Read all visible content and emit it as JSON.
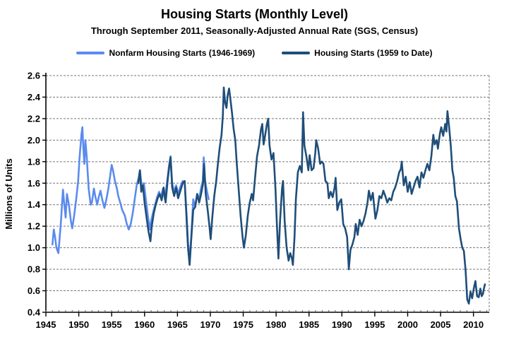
{
  "chart": {
    "title": "Housing Starts (Monthly Level)",
    "subtitle": "Through September 2011, Seasonally-Adjusted Annual Rate (SGS, Census)",
    "ylabel": "Millions of Units"
  },
  "chart_data": {
    "type": "line",
    "title": "Housing Starts (Monthly Level)",
    "subtitle": "Through September 2011, Seasonally-Adjusted Annual Rate (SGS, Census)",
    "xlabel": "",
    "ylabel": "Millions of Units",
    "xlim": [
      1945,
      2012.4
    ],
    "ylim": [
      0.4,
      2.6
    ],
    "x_ticks": [
      1945,
      1950,
      1955,
      1960,
      1965,
      1970,
      1975,
      1980,
      1985,
      1990,
      1995,
      2000,
      2005,
      2010
    ],
    "y_ticks": [
      0.4,
      0.6,
      0.8,
      1.0,
      1.2,
      1.4,
      1.6,
      1.8,
      2.0,
      2.2,
      2.4,
      2.6
    ],
    "grid": "horizontal-dashed-gray",
    "legend_position": "top",
    "units": "millions of units, seasonally-adjusted annual rate",
    "series": [
      {
        "name": "Nonfarm Housing Starts (1946-1969)",
        "color": "#5b8bef",
        "points": [
          [
            1946.0,
            1.03
          ],
          [
            1946.2,
            1.17
          ],
          [
            1946.4,
            1.1
          ],
          [
            1946.6,
            1.0
          ],
          [
            1946.9,
            0.95
          ],
          [
            1947.1,
            1.1
          ],
          [
            1947.3,
            1.25
          ],
          [
            1947.6,
            1.54
          ],
          [
            1947.8,
            1.4
          ],
          [
            1948.0,
            1.28
          ],
          [
            1948.2,
            1.5
          ],
          [
            1948.5,
            1.4
          ],
          [
            1948.8,
            1.25
          ],
          [
            1949.0,
            1.18
          ],
          [
            1949.3,
            1.3
          ],
          [
            1949.6,
            1.45
          ],
          [
            1949.9,
            1.62
          ],
          [
            1950.1,
            1.82
          ],
          [
            1950.4,
            2.05
          ],
          [
            1950.55,
            2.12
          ],
          [
            1950.7,
            1.92
          ],
          [
            1950.85,
            1.78
          ],
          [
            1951.0,
            2.0
          ],
          [
            1951.2,
            1.85
          ],
          [
            1951.5,
            1.55
          ],
          [
            1951.8,
            1.4
          ],
          [
            1952.0,
            1.42
          ],
          [
            1952.3,
            1.55
          ],
          [
            1952.5,
            1.48
          ],
          [
            1952.8,
            1.4
          ],
          [
            1953.0,
            1.46
          ],
          [
            1953.3,
            1.53
          ],
          [
            1953.6,
            1.44
          ],
          [
            1953.9,
            1.37
          ],
          [
            1954.2,
            1.45
          ],
          [
            1954.5,
            1.55
          ],
          [
            1954.8,
            1.68
          ],
          [
            1955.0,
            1.77
          ],
          [
            1955.2,
            1.72
          ],
          [
            1955.5,
            1.62
          ],
          [
            1955.8,
            1.55
          ],
          [
            1956.0,
            1.48
          ],
          [
            1956.3,
            1.42
          ],
          [
            1956.6,
            1.35
          ],
          [
            1957.0,
            1.3
          ],
          [
            1957.3,
            1.22
          ],
          [
            1957.6,
            1.17
          ],
          [
            1957.9,
            1.22
          ],
          [
            1958.2,
            1.32
          ],
          [
            1958.5,
            1.45
          ],
          [
            1958.8,
            1.58
          ],
          [
            1959.1,
            1.65
          ],
          [
            1959.3,
            1.72
          ],
          [
            1959.6,
            1.55
          ],
          [
            1959.9,
            1.6
          ],
          [
            1960.2,
            1.45
          ],
          [
            1960.5,
            1.3
          ],
          [
            1960.8,
            1.17
          ],
          [
            1961.0,
            1.25
          ],
          [
            1961.3,
            1.33
          ],
          [
            1961.6,
            1.4
          ],
          [
            1961.9,
            1.47
          ],
          [
            1962.2,
            1.52
          ],
          [
            1962.5,
            1.47
          ],
          [
            1962.8,
            1.55
          ],
          [
            1963.1,
            1.45
          ],
          [
            1963.4,
            1.6
          ],
          [
            1963.7,
            1.75
          ],
          [
            1963.95,
            1.85
          ],
          [
            1964.2,
            1.6
          ],
          [
            1964.5,
            1.52
          ],
          [
            1964.8,
            1.58
          ],
          [
            1965.1,
            1.5
          ],
          [
            1965.4,
            1.56
          ],
          [
            1965.8,
            1.62
          ],
          [
            1966.1,
            1.6
          ],
          [
            1966.4,
            1.3
          ],
          [
            1966.6,
            1.05
          ],
          [
            1966.85,
            0.88
          ],
          [
            1967.1,
            1.1
          ],
          [
            1967.4,
            1.45
          ],
          [
            1967.7,
            1.38
          ],
          [
            1968.0,
            1.5
          ],
          [
            1968.3,
            1.45
          ],
          [
            1968.6,
            1.56
          ],
          [
            1968.85,
            1.62
          ],
          [
            1969.0,
            1.84
          ],
          [
            1969.2,
            1.62
          ],
          [
            1969.5,
            1.52
          ],
          [
            1969.75,
            1.45
          ]
        ]
      },
      {
        "name": "Housing Starts (1959 to Date)",
        "color": "#1f4e79",
        "points": [
          [
            1959.05,
            1.6
          ],
          [
            1959.3,
            1.72
          ],
          [
            1959.5,
            1.52
          ],
          [
            1959.75,
            1.58
          ],
          [
            1960.0,
            1.42
          ],
          [
            1960.3,
            1.28
          ],
          [
            1960.6,
            1.15
          ],
          [
            1960.9,
            1.06
          ],
          [
            1961.1,
            1.2
          ],
          [
            1961.4,
            1.32
          ],
          [
            1961.7,
            1.4
          ],
          [
            1962.0,
            1.46
          ],
          [
            1962.3,
            1.5
          ],
          [
            1962.6,
            1.44
          ],
          [
            1962.9,
            1.56
          ],
          [
            1963.2,
            1.42
          ],
          [
            1963.5,
            1.62
          ],
          [
            1963.8,
            1.78
          ],
          [
            1963.95,
            1.84
          ],
          [
            1964.2,
            1.56
          ],
          [
            1964.5,
            1.48
          ],
          [
            1964.8,
            1.56
          ],
          [
            1965.1,
            1.46
          ],
          [
            1965.4,
            1.52
          ],
          [
            1965.8,
            1.6
          ],
          [
            1966.1,
            1.62
          ],
          [
            1966.4,
            1.25
          ],
          [
            1966.6,
            1.0
          ],
          [
            1966.85,
            0.84
          ],
          [
            1967.1,
            1.08
          ],
          [
            1967.4,
            1.35
          ],
          [
            1967.7,
            1.38
          ],
          [
            1968.0,
            1.5
          ],
          [
            1968.3,
            1.42
          ],
          [
            1968.6,
            1.5
          ],
          [
            1968.9,
            1.6
          ],
          [
            1969.05,
            1.78
          ],
          [
            1969.3,
            1.5
          ],
          [
            1969.6,
            1.35
          ],
          [
            1969.9,
            1.18
          ],
          [
            1970.05,
            1.08
          ],
          [
            1970.3,
            1.28
          ],
          [
            1970.6,
            1.48
          ],
          [
            1970.9,
            1.62
          ],
          [
            1971.1,
            1.75
          ],
          [
            1971.4,
            1.92
          ],
          [
            1971.7,
            2.05
          ],
          [
            1971.9,
            2.22
          ],
          [
            1972.05,
            2.49
          ],
          [
            1972.25,
            2.35
          ],
          [
            1972.45,
            2.3
          ],
          [
            1972.65,
            2.42
          ],
          [
            1972.85,
            2.48
          ],
          [
            1973.05,
            2.38
          ],
          [
            1973.3,
            2.25
          ],
          [
            1973.55,
            2.1
          ],
          [
            1973.8,
            2.0
          ],
          [
            1974.0,
            1.8
          ],
          [
            1974.3,
            1.55
          ],
          [
            1974.6,
            1.3
          ],
          [
            1974.9,
            1.1
          ],
          [
            1975.1,
            1.0
          ],
          [
            1975.4,
            1.12
          ],
          [
            1975.7,
            1.3
          ],
          [
            1976.0,
            1.42
          ],
          [
            1976.3,
            1.5
          ],
          [
            1976.5,
            1.44
          ],
          [
            1976.8,
            1.65
          ],
          [
            1977.1,
            1.85
          ],
          [
            1977.4,
            1.95
          ],
          [
            1977.7,
            2.1
          ],
          [
            1977.9,
            2.15
          ],
          [
            1978.1,
            1.96
          ],
          [
            1978.35,
            2.05
          ],
          [
            1978.6,
            2.15
          ],
          [
            1978.8,
            2.2
          ],
          [
            1979.0,
            1.95
          ],
          [
            1979.3,
            1.82
          ],
          [
            1979.6,
            1.88
          ],
          [
            1979.9,
            1.55
          ],
          [
            1980.1,
            1.25
          ],
          [
            1980.35,
            0.9
          ],
          [
            1980.6,
            1.25
          ],
          [
            1980.9,
            1.55
          ],
          [
            1981.05,
            1.62
          ],
          [
            1981.3,
            1.25
          ],
          [
            1981.6,
            1.0
          ],
          [
            1981.9,
            0.88
          ],
          [
            1982.15,
            0.95
          ],
          [
            1982.4,
            0.9
          ],
          [
            1982.55,
            0.84
          ],
          [
            1982.8,
            1.1
          ],
          [
            1983.0,
            1.45
          ],
          [
            1983.3,
            1.7
          ],
          [
            1983.6,
            1.76
          ],
          [
            1983.9,
            1.7
          ],
          [
            1984.1,
            2.26
          ],
          [
            1984.3,
            1.95
          ],
          [
            1984.6,
            1.85
          ],
          [
            1984.9,
            1.72
          ],
          [
            1985.1,
            1.86
          ],
          [
            1985.4,
            1.72
          ],
          [
            1985.7,
            1.74
          ],
          [
            1985.95,
            1.88
          ],
          [
            1986.1,
            2.0
          ],
          [
            1986.4,
            1.92
          ],
          [
            1986.7,
            1.78
          ],
          [
            1986.95,
            1.8
          ],
          [
            1987.2,
            1.78
          ],
          [
            1987.5,
            1.62
          ],
          [
            1987.8,
            1.6
          ],
          [
            1988.0,
            1.46
          ],
          [
            1988.3,
            1.52
          ],
          [
            1988.6,
            1.47
          ],
          [
            1988.9,
            1.56
          ],
          [
            1989.05,
            1.65
          ],
          [
            1989.3,
            1.35
          ],
          [
            1989.6,
            1.42
          ],
          [
            1989.9,
            1.45
          ],
          [
            1990.2,
            1.22
          ],
          [
            1990.5,
            1.18
          ],
          [
            1990.8,
            1.1
          ],
          [
            1991.05,
            0.8
          ],
          [
            1991.3,
            0.98
          ],
          [
            1991.6,
            1.03
          ],
          [
            1991.9,
            1.1
          ],
          [
            1992.1,
            1.22
          ],
          [
            1992.4,
            1.12
          ],
          [
            1992.7,
            1.26
          ],
          [
            1993.0,
            1.2
          ],
          [
            1993.3,
            1.25
          ],
          [
            1993.6,
            1.32
          ],
          [
            1993.9,
            1.42
          ],
          [
            1994.1,
            1.53
          ],
          [
            1994.4,
            1.44
          ],
          [
            1994.7,
            1.51
          ],
          [
            1995.1,
            1.27
          ],
          [
            1995.4,
            1.35
          ],
          [
            1995.7,
            1.48
          ],
          [
            1996.0,
            1.46
          ],
          [
            1996.3,
            1.53
          ],
          [
            1996.6,
            1.48
          ],
          [
            1996.9,
            1.42
          ],
          [
            1997.2,
            1.46
          ],
          [
            1997.5,
            1.44
          ],
          [
            1997.8,
            1.52
          ],
          [
            1998.1,
            1.56
          ],
          [
            1998.4,
            1.62
          ],
          [
            1998.7,
            1.7
          ],
          [
            1998.95,
            1.73
          ],
          [
            1999.1,
            1.8
          ],
          [
            1999.4,
            1.58
          ],
          [
            1999.7,
            1.66
          ],
          [
            2000.0,
            1.52
          ],
          [
            2000.3,
            1.61
          ],
          [
            2000.6,
            1.5
          ],
          [
            2000.9,
            1.56
          ],
          [
            2001.2,
            1.62
          ],
          [
            2001.5,
            1.66
          ],
          [
            2001.8,
            1.56
          ],
          [
            2002.1,
            1.7
          ],
          [
            2002.4,
            1.65
          ],
          [
            2002.7,
            1.72
          ],
          [
            2003.0,
            1.78
          ],
          [
            2003.3,
            1.72
          ],
          [
            2003.6,
            1.85
          ],
          [
            2003.9,
            2.05
          ],
          [
            2004.1,
            1.96
          ],
          [
            2004.4,
            2.0
          ],
          [
            2004.6,
            1.92
          ],
          [
            2004.9,
            2.06
          ],
          [
            2005.1,
            2.12
          ],
          [
            2005.4,
            2.04
          ],
          [
            2005.7,
            2.15
          ],
          [
            2005.9,
            2.08
          ],
          [
            2006.05,
            2.27
          ],
          [
            2006.3,
            2.12
          ],
          [
            2006.55,
            1.95
          ],
          [
            2006.8,
            1.72
          ],
          [
            2007.0,
            1.65
          ],
          [
            2007.25,
            1.48
          ],
          [
            2007.5,
            1.43
          ],
          [
            2007.8,
            1.18
          ],
          [
            2008.05,
            1.08
          ],
          [
            2008.3,
            1.0
          ],
          [
            2008.55,
            0.97
          ],
          [
            2008.8,
            0.79
          ],
          [
            2009.05,
            0.52
          ],
          [
            2009.3,
            0.48
          ],
          [
            2009.55,
            0.59
          ],
          [
            2009.8,
            0.53
          ],
          [
            2010.05,
            0.62
          ],
          [
            2010.3,
            0.69
          ],
          [
            2010.55,
            0.55
          ],
          [
            2010.8,
            0.54
          ],
          [
            2011.05,
            0.62
          ],
          [
            2011.25,
            0.55
          ],
          [
            2011.45,
            0.57
          ],
          [
            2011.6,
            0.62
          ],
          [
            2011.75,
            0.66
          ]
        ]
      }
    ]
  },
  "colors": {
    "grid": "#777777",
    "axis": "#000000",
    "background": "#ffffff"
  }
}
